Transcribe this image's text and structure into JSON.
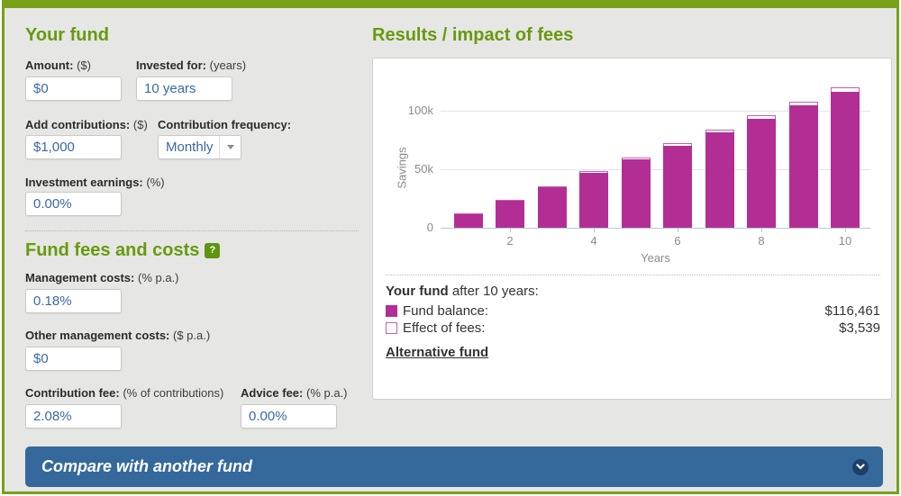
{
  "accent": {
    "green": "#689a0e",
    "magenta": "#b32e94",
    "magenta_light": "#c45fb1",
    "blue_bar": "#35699c",
    "input_text_blue": "#3a68a8"
  },
  "your_fund": {
    "heading": "Your fund",
    "amount": {
      "label": "Amount:",
      "note": "($)",
      "value": "$0"
    },
    "invested_for": {
      "label": "Invested for:",
      "note": "(years)",
      "value": "10 years"
    },
    "add_contributions": {
      "label": "Add contributions:",
      "note": "($)",
      "value": "$1,000"
    },
    "contribution_frequency": {
      "label": "Contribution frequency:",
      "note": "",
      "value": "Monthly"
    },
    "investment_earnings": {
      "label": "Investment earnings:",
      "note": "(%)",
      "value": "0.00%"
    }
  },
  "fees": {
    "heading": "Fund fees and costs",
    "help_icon_label": "?",
    "management_costs": {
      "label": "Management costs:",
      "note": "(% p.a.)",
      "value": "0.18%"
    },
    "other_management_costs": {
      "label": "Other management costs:",
      "note": "($ p.a.)",
      "value": "$0"
    },
    "contribution_fee": {
      "label": "Contribution fee:",
      "note": "(% of contributions)",
      "value": "2.08%"
    },
    "advice_fee": {
      "label": "Advice fee:",
      "note": "(% p.a.)",
      "value": "0.00%"
    }
  },
  "results": {
    "heading": "Results / impact of fees",
    "summary_bold": "Your fund",
    "summary_rest": " after 10 years:",
    "fund_balance_label": "Fund balance:",
    "fund_balance_value": "$116,461",
    "effect_of_fees_label": "Effect of fees:",
    "effect_of_fees_value": "$3,539",
    "alternative_link": "Alternative fund"
  },
  "compare": {
    "label": "Compare with another fund"
  },
  "chart_data": {
    "type": "bar",
    "stacked": true,
    "x": [
      1,
      2,
      3,
      4,
      5,
      6,
      7,
      8,
      9,
      10
    ],
    "series": [
      {
        "name": "Fund balance",
        "color": "#b32e94",
        "values": [
          11646,
          23292,
          34938,
          46584,
          58231,
          69877,
          81523,
          93169,
          104815,
          116461
        ]
      },
      {
        "name": "Effect of fees",
        "color": "#ffffff",
        "border": "#c45fb1",
        "values": [
          354,
          708,
          1062,
          1416,
          1769,
          2123,
          2477,
          2831,
          3185,
          3539
        ]
      }
    ],
    "title": "",
    "xlabel": "Years",
    "ylabel": "Savings",
    "xticks": [
      2,
      4,
      6,
      8,
      10
    ],
    "yticks_values": [
      0,
      50000,
      100000
    ],
    "yticks_labels": [
      "0",
      "50k",
      "100k"
    ],
    "ylim": [
      0,
      144600
    ],
    "grid": true,
    "legend_position": "below"
  }
}
